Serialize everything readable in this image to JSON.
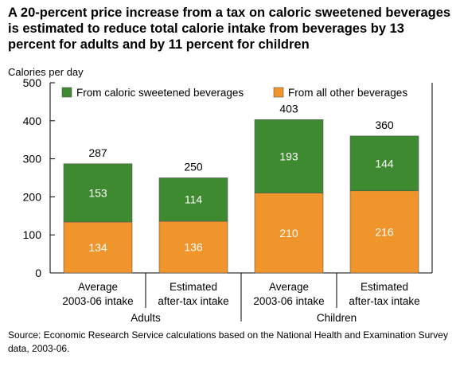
{
  "title": "A 20-percent price increase from a tax on caloric sweetened beverages is estimated to reduce total calorie intake from beverages by 13 percent for adults and by 11 percent for children",
  "source": "Source: Economic Research Service calculations based on the National Health and Examination Survey data, 2003-06.",
  "chart_data": {
    "type": "bar",
    "stacked": true,
    "ylabel": "Calories per day",
    "ylim": [
      0,
      500
    ],
    "yticks": [
      0,
      100,
      200,
      300,
      400,
      500
    ],
    "grid": false,
    "legend_position": "top",
    "categories": [
      [
        "Average",
        "2003-06 intake"
      ],
      [
        "Estimated",
        "after-tax intake"
      ],
      [
        "Average",
        "2003-06 intake"
      ],
      [
        "Estimated",
        "after-tax intake"
      ]
    ],
    "groups": [
      {
        "label": "Adults",
        "categories": [
          0,
          1
        ]
      },
      {
        "label": "Children",
        "categories": [
          2,
          3
        ]
      }
    ],
    "series": [
      {
        "name": "From all other beverages",
        "color": "#F0952B",
        "values": [
          134,
          136,
          210,
          216
        ]
      },
      {
        "name": "From caloric sweetened beverages",
        "color": "#3E8A30",
        "values": [
          153,
          114,
          193,
          144
        ]
      }
    ],
    "legend_order": [
      1,
      0
    ],
    "totals": [
      287,
      250,
      403,
      360
    ]
  }
}
